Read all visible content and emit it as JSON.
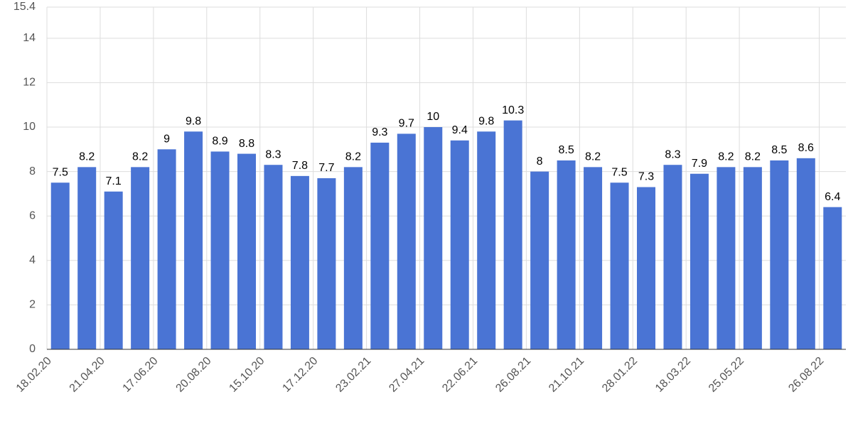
{
  "chart_data": {
    "type": "bar",
    "categories": [
      "18.02.20",
      null,
      "21.04.20",
      null,
      "17.06.20",
      null,
      "20.08.20",
      null,
      "15.10.20",
      null,
      "17.12.20",
      null,
      "23.02.21",
      null,
      "27.04.21",
      null,
      "22.06.21",
      null,
      "26.08.21",
      null,
      "21.10.21",
      null,
      "28.01.22",
      null,
      "18.03.22",
      null,
      "25.05.22",
      null,
      null,
      "26.08.22"
    ],
    "values": [
      7.5,
      8.2,
      7.1,
      8.2,
      9,
      9.8,
      8.9,
      8.8,
      8.3,
      7.8,
      7.7,
      8.2,
      9.3,
      9.7,
      10,
      9.4,
      9.8,
      10.3,
      8,
      8.5,
      8.2,
      7.5,
      7.3,
      8.3,
      7.9,
      8.2,
      8.2,
      8.5,
      8.6,
      6.4
    ],
    "color": "#4a74d4",
    "ylim": [
      0,
      15.4
    ],
    "yticks": [
      0,
      2,
      4,
      6,
      8,
      10,
      12,
      14,
      15.4
    ],
    "grid": true
  }
}
